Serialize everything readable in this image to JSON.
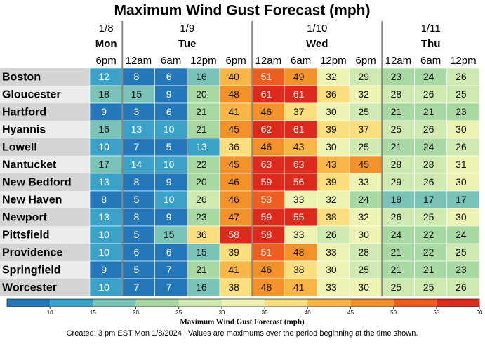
{
  "chart_data": {
    "type": "heatmap",
    "title": "Maximum Wind Gust Forecast (mph)",
    "days": [
      {
        "date": "1/8",
        "day": "Mon",
        "times": [
          "6pm"
        ]
      },
      {
        "date": "1/9",
        "day": "Tue",
        "times": [
          "12am",
          "6am",
          "12pm",
          "6pm"
        ]
      },
      {
        "date": "1/10",
        "day": "Wed",
        "times": [
          "12am",
          "6am",
          "12pm",
          "6pm"
        ]
      },
      {
        "date": "1/11",
        "day": "Thu",
        "times": [
          "12am",
          "6am",
          "12pm"
        ]
      }
    ],
    "rows": [
      {
        "city": "Boston",
        "values": [
          12,
          8,
          6,
          16,
          40,
          51,
          49,
          32,
          29,
          23,
          24,
          26
        ]
      },
      {
        "city": "Gloucester",
        "values": [
          18,
          15,
          9,
          20,
          48,
          61,
          61,
          36,
          32,
          28,
          26,
          25
        ]
      },
      {
        "city": "Hartford",
        "values": [
          9,
          3,
          6,
          21,
          41,
          46,
          37,
          30,
          25,
          21,
          21,
          23
        ]
      },
      {
        "city": "Hyannis",
        "values": [
          16,
          13,
          10,
          21,
          45,
          62,
          61,
          39,
          37,
          25,
          26,
          30
        ]
      },
      {
        "city": "Lowell",
        "values": [
          10,
          7,
          5,
          13,
          36,
          46,
          43,
          30,
          25,
          21,
          24,
          26
        ]
      },
      {
        "city": "Nantucket",
        "values": [
          17,
          14,
          10,
          22,
          45,
          63,
          63,
          43,
          45,
          28,
          28,
          31
        ]
      },
      {
        "city": "New Bedford",
        "values": [
          13,
          8,
          9,
          20,
          46,
          59,
          56,
          39,
          33,
          29,
          26,
          30
        ]
      },
      {
        "city": "New Haven",
        "values": [
          8,
          5,
          10,
          26,
          46,
          53,
          33,
          32,
          24,
          18,
          17,
          17
        ]
      },
      {
        "city": "Newport",
        "values": [
          13,
          8,
          9,
          23,
          47,
          59,
          55,
          38,
          32,
          26,
          25,
          30
        ]
      },
      {
        "city": "Pittsfield",
        "values": [
          10,
          5,
          15,
          36,
          58,
          58,
          33,
          26,
          30,
          24,
          22,
          24
        ]
      },
      {
        "city": "Providence",
        "values": [
          10,
          6,
          6,
          15,
          39,
          51,
          48,
          33,
          28,
          21,
          22,
          25
        ]
      },
      {
        "city": "Springfield",
        "values": [
          9,
          5,
          7,
          21,
          41,
          46,
          38,
          30,
          25,
          21,
          21,
          23
        ]
      },
      {
        "city": "Worcester",
        "values": [
          10,
          7,
          7,
          16,
          38,
          48,
          41,
          33,
          30,
          25,
          25,
          26
        ]
      }
    ],
    "colorbar": {
      "label": "Maximum Wind Gust Forecast (mph)",
      "xlim": [
        5,
        60
      ],
      "xticks": [
        10,
        15,
        20,
        25,
        30,
        35,
        40,
        45,
        50,
        55,
        60
      ],
      "colors": [
        "#2477b8",
        "#3aa2c9",
        "#79c3b9",
        "#a9d9a3",
        "#cfeab0",
        "#eef3b4",
        "#fbde7e",
        "#f9b546",
        "#f3922a",
        "#ec5f20",
        "#dc2a1c"
      ]
    },
    "footer": "Created: 3 pm EST Mon 1/8/2024  |  Values are maximums over the period beginning at the time shown."
  }
}
